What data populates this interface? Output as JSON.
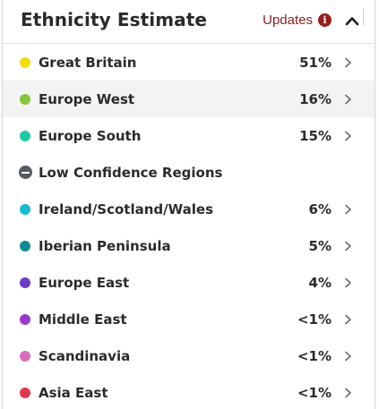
{
  "header": {
    "title": "Ethnicity Estimate",
    "updates_label": "Updates",
    "info_icon": "i"
  },
  "colors": {
    "updates": "#8a1c1c",
    "info_icon_bg": "#9b1b1b",
    "row_highlight": "#f3f3f3"
  },
  "regions_primary": [
    {
      "name": "Great Britain",
      "percent": "51%",
      "color": "#f2dd12"
    },
    {
      "name": "Europe West",
      "percent": "16%",
      "color": "#86c43a"
    },
    {
      "name": "Europe South",
      "percent": "15%",
      "color": "#1ec9a4"
    }
  ],
  "low_confidence": {
    "label": "Low Confidence Regions",
    "icon": "minus-circle-icon"
  },
  "regions_low": [
    {
      "name": "Ireland/Scotland/Wales",
      "percent": "6%",
      "color": "#17bccf"
    },
    {
      "name": "Iberian Peninsula",
      "percent": "5%",
      "color": "#128a96"
    },
    {
      "name": "Europe East",
      "percent": "4%",
      "color": "#6a3bc7"
    },
    {
      "name": "Middle East",
      "percent": "<1%",
      "color": "#9b3ac9"
    },
    {
      "name": "Scandinavia",
      "percent": "<1%",
      "color": "#d76cb9"
    },
    {
      "name": "Asia East",
      "percent": "<1%",
      "color": "#e2384f"
    }
  ]
}
